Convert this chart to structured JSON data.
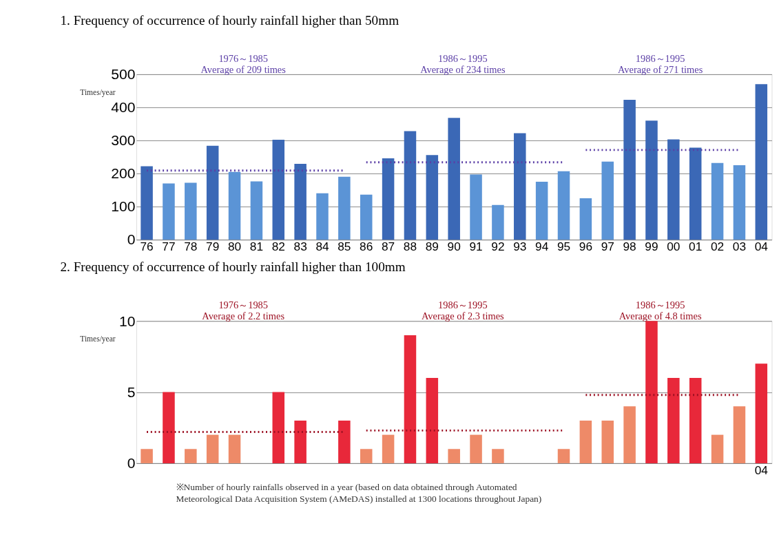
{
  "chart_data": [
    {
      "type": "bar",
      "title": "1. Frequency of occurrence of hourly rainfall higher than 50mm",
      "ylabel": "Times/year",
      "categories": [
        "76",
        "77",
        "78",
        "79",
        "80",
        "81",
        "82",
        "83",
        "84",
        "85",
        "86",
        "87",
        "88",
        "89",
        "90",
        "91",
        "92",
        "93",
        "94",
        "95",
        "96",
        "97",
        "98",
        "99",
        "00",
        "01",
        "02",
        "03",
        "04"
      ],
      "series": [
        {
          "type": "bar",
          "colors": [
            "#3b68b6",
            "#5b94d6",
            "#5b94d6",
            "#3b68b6",
            "#5b94d6",
            "#5b94d6",
            "#3b68b6",
            "#3b68b6",
            "#5b94d6",
            "#5b94d6",
            "#5b94d6",
            "#3b68b6",
            "#3b68b6",
            "#3b68b6",
            "#3b68b6",
            "#5b94d6",
            "#5b94d6",
            "#3b68b6",
            "#5b94d6",
            "#5b94d6",
            "#5b94d6",
            "#5b94d6",
            "#3b68b6",
            "#3b68b6",
            "#3b68b6",
            "#3b68b6",
            "#5b94d6",
            "#5b94d6",
            "#3b68b6"
          ],
          "values": [
            222,
            170,
            172,
            284,
            205,
            176,
            302,
            229,
            140,
            190,
            136,
            246,
            328,
            256,
            368,
            197,
            105,
            322,
            175,
            207,
            125,
            236,
            423,
            360,
            303,
            278,
            232,
            225,
            470
          ]
        },
        {
          "type": "line",
          "color": "#5b3fa6",
          "line_style": "dotted",
          "values": [
            209,
            209,
            209,
            209,
            209,
            209,
            209,
            209,
            209,
            209,
            null,
            null,
            null,
            null,
            null,
            null,
            null,
            null,
            null,
            null,
            null,
            null,
            null,
            null,
            null,
            null,
            null,
            null,
            null
          ]
        },
        {
          "type": "line",
          "color": "#5b3fa6",
          "line_style": "dotted",
          "values": [
            null,
            null,
            null,
            null,
            null,
            null,
            null,
            null,
            null,
            null,
            234,
            234,
            234,
            234,
            234,
            234,
            234,
            234,
            234,
            234,
            null,
            null,
            null,
            null,
            null,
            null,
            null,
            null,
            null
          ]
        },
        {
          "type": "line",
          "color": "#5b3fa6",
          "line_style": "dotted",
          "values": [
            null,
            null,
            null,
            null,
            null,
            null,
            null,
            null,
            null,
            null,
            null,
            null,
            null,
            null,
            null,
            null,
            null,
            null,
            null,
            null,
            271,
            271,
            271,
            271,
            271,
            271,
            271,
            271,
            null
          ]
        }
      ],
      "ylim": [
        0,
        500
      ],
      "yticks": [
        0,
        100,
        200,
        300,
        400,
        500
      ],
      "grid": "y",
      "annotations": [
        "1976～1985\nAverage of 209 times",
        "1986～1995\nAverage of 234 times",
        "1986～1995\nAverage of 271 times"
      ]
    },
    {
      "type": "bar",
      "title": "2. Frequency of occurrence of hourly rainfall higher than 100mm",
      "ylabel": "Times/year",
      "categories": [
        null,
        null,
        null,
        null,
        null,
        null,
        null,
        null,
        null,
        null,
        null,
        null,
        null,
        null,
        null,
        null,
        null,
        null,
        null,
        null,
        null,
        null,
        null,
        null,
        null,
        null,
        null,
        null,
        "04"
      ],
      "series": [
        {
          "type": "bar",
          "colors": [
            "#ee8a68",
            "#e8283a",
            "#ee8a68",
            "#ee8a68",
            "#ee8a68",
            "#ee8a68",
            "#e8283a",
            "#e8283a",
            "#ee8a68",
            "#e8283a",
            "#ee8a68",
            "#ee8a68",
            "#e8283a",
            "#e8283a",
            "#ee8a68",
            "#ee8a68",
            "#ee8a68",
            "#ee8a68",
            "#ee8a68",
            "#ee8a68",
            "#ee8a68",
            "#ee8a68",
            "#ee8a68",
            "#e8283a",
            "#e8283a",
            "#e8283a",
            "#ee8a68",
            "#ee8a68",
            "#e8283a"
          ],
          "values": [
            1,
            5,
            1,
            2,
            2,
            0,
            5,
            3,
            0,
            3,
            1,
            2,
            9,
            6,
            1,
            2,
            1,
            0,
            0,
            1,
            3,
            3,
            4,
            10,
            6,
            6,
            2,
            4,
            7
          ]
        },
        {
          "type": "line",
          "color": "#9c1022",
          "line_style": "dotted",
          "values": [
            2.2,
            2.2,
            2.2,
            2.2,
            2.2,
            2.2,
            2.2,
            2.2,
            2.2,
            2.2,
            null,
            null,
            null,
            null,
            null,
            null,
            null,
            null,
            null,
            null,
            null,
            null,
            null,
            null,
            null,
            null,
            null,
            null,
            null
          ]
        },
        {
          "type": "line",
          "color": "#9c1022",
          "line_style": "dotted",
          "values": [
            null,
            null,
            null,
            null,
            null,
            null,
            null,
            null,
            null,
            null,
            2.3,
            2.3,
            2.3,
            2.3,
            2.3,
            2.3,
            2.3,
            2.3,
            2.3,
            2.3,
            null,
            null,
            null,
            null,
            null,
            null,
            null,
            null,
            null
          ]
        },
        {
          "type": "line",
          "color": "#9c1022",
          "line_style": "dotted",
          "values": [
            null,
            null,
            null,
            null,
            null,
            null,
            null,
            null,
            null,
            null,
            null,
            null,
            null,
            null,
            null,
            null,
            null,
            null,
            null,
            null,
            4.8,
            4.8,
            4.8,
            4.8,
            4.8,
            4.8,
            4.8,
            4.8,
            null
          ]
        }
      ],
      "ylim": [
        0,
        10
      ],
      "yticks": [
        0,
        5,
        10
      ],
      "grid": "y",
      "annotations": [
        "1976～1985\nAverage of 2.2 times",
        "1986～1995\nAverage of 2.3 times",
        "1986～1995\nAverage of 4.8 times",
        "※Number of hourly rainfalls observed in a year (based on data obtained through Automated\nMeteorological Data Acquisition System (AMeDAS) installed at 1300 locations throughout Japan)"
      ]
    }
  ]
}
